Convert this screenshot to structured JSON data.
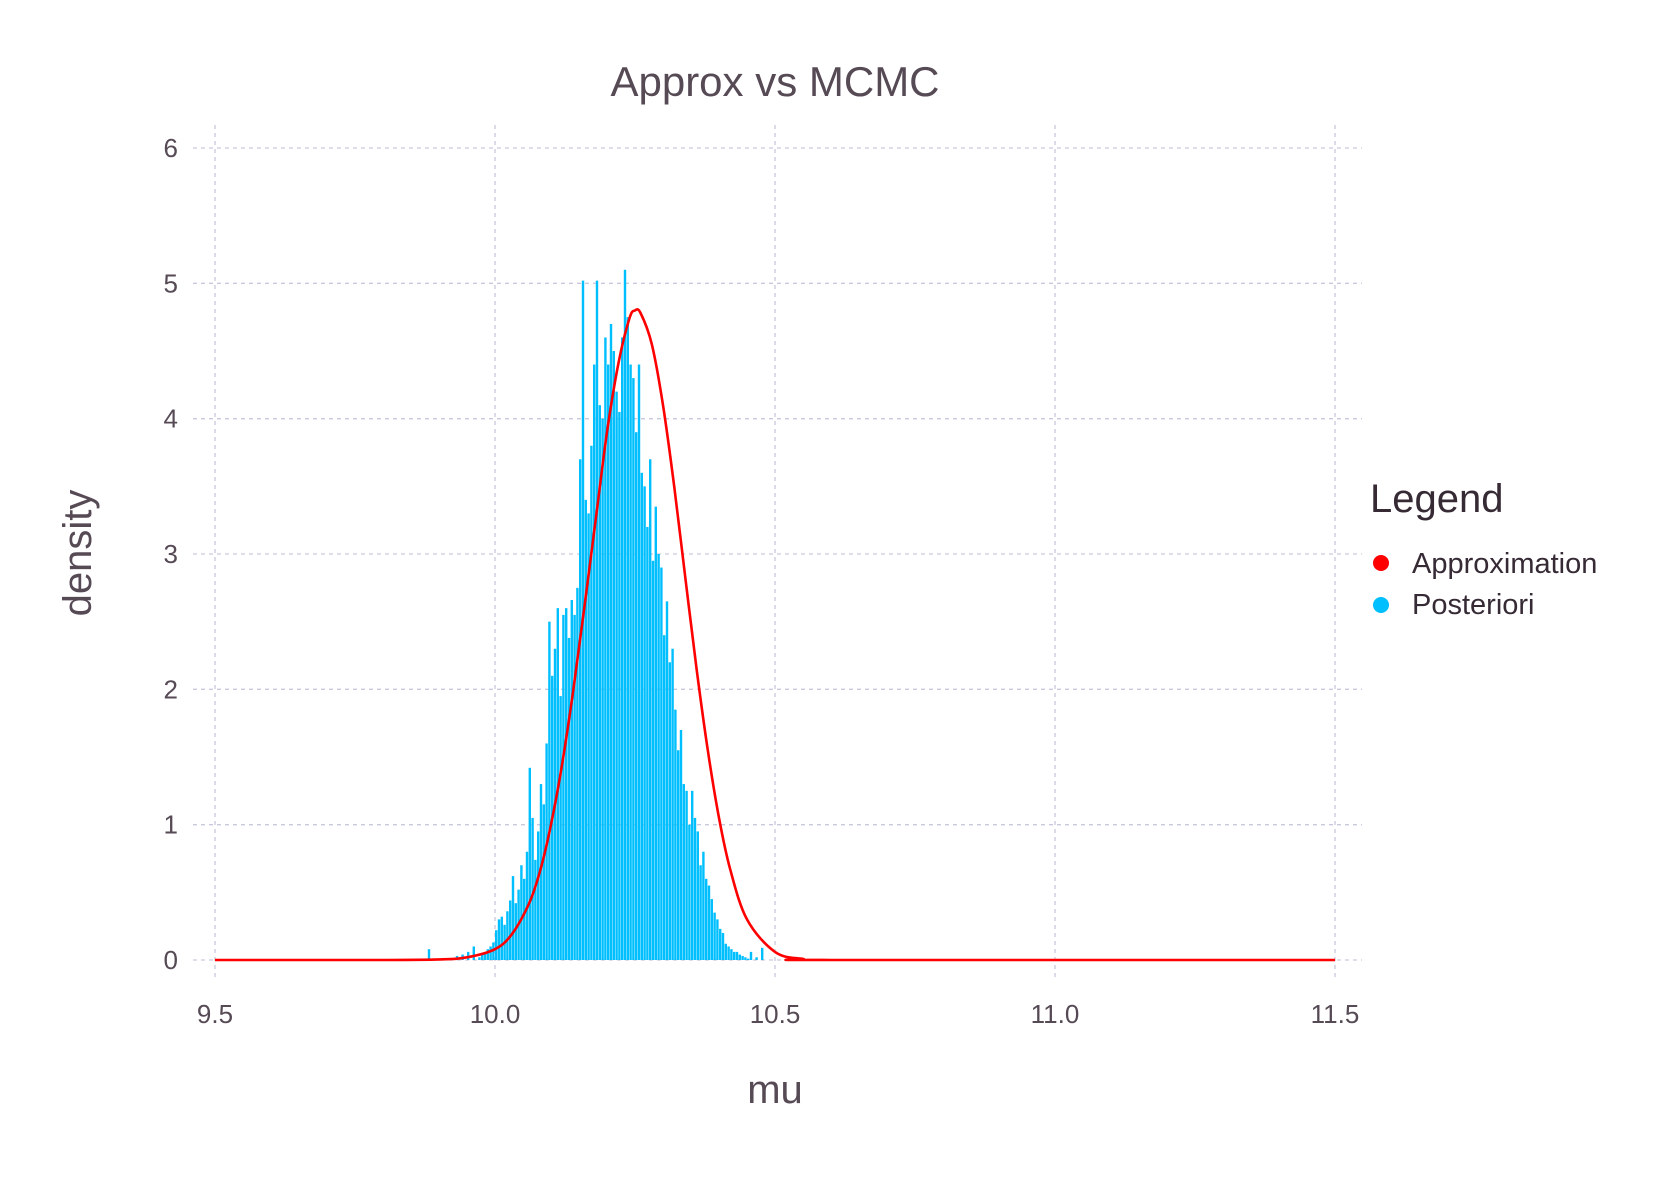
{
  "chart_data": {
    "type": "bar",
    "title": "Approx vs MCMC",
    "xlabel": "mu",
    "ylabel": "density",
    "xlim": [
      9.5,
      11.5
    ],
    "ylim": [
      0,
      6
    ],
    "x_ticks": [
      "9.5",
      "10.0",
      "10.5",
      "11.0",
      "11.5"
    ],
    "y_ticks": [
      "0",
      "1",
      "2",
      "3",
      "4",
      "5",
      "6"
    ],
    "grid": true,
    "legend": {
      "title": "Legend",
      "position": "right",
      "entries": [
        {
          "label": "Approximation",
          "color": "#ff0000"
        },
        {
          "label": "Posteriori",
          "color": "#00bfff"
        }
      ]
    },
    "series": [
      {
        "name": "Posteriori",
        "kind": "histogram",
        "color": "#00bfff",
        "bin_width": 0.005,
        "bin_start": 9.88,
        "values": [
          0.08,
          0,
          0,
          0,
          0,
          0,
          0,
          0,
          0,
          0,
          0.03,
          0,
          0.04,
          0,
          0.06,
          0,
          0.1,
          0,
          0.02,
          0.05,
          0.05,
          0.08,
          0.1,
          0.13,
          0.22,
          0.3,
          0.32,
          0.26,
          0.36,
          0.44,
          0.62,
          0.42,
          0.52,
          0.7,
          0.6,
          0.8,
          1.42,
          1.05,
          0.74,
          0.95,
          1.3,
          1.15,
          1.6,
          2.5,
          2.1,
          2.3,
          2.6,
          1.95,
          2.55,
          2.6,
          2.38,
          2.66,
          2.55,
          2.75,
          3.7,
          5.02,
          3.4,
          3.3,
          3.8,
          4.4,
          5.02,
          4.1,
          4.0,
          4.6,
          4.4,
          4.7,
          4.5,
          4.2,
          4.05,
          4.6,
          5.1,
          4.75,
          4.4,
          4.3,
          3.9,
          4.4,
          3.6,
          3.5,
          3.2,
          3.7,
          2.95,
          3.35,
          3.0,
          2.9,
          2.4,
          2.65,
          2.2,
          2.3,
          1.85,
          1.55,
          1.7,
          1.3,
          1.25,
          1.0,
          1.25,
          1.05,
          0.95,
          0.7,
          0.8,
          0.6,
          0.55,
          0.45,
          0.35,
          0.3,
          0.23,
          0.2,
          0.12,
          0.1,
          0.08,
          0.06,
          0.06,
          0.04,
          0.03,
          0.02,
          0.01,
          0.06,
          0,
          0.02,
          0,
          0.09
        ]
      },
      {
        "name": "Approximation",
        "kind": "line",
        "color": "#ff0000",
        "x": [
          9.5,
          9.8,
          9.9,
          9.95,
          10.0,
          10.03,
          10.06,
          10.08,
          10.1,
          10.12,
          10.14,
          10.16,
          10.18,
          10.2,
          10.22,
          10.24,
          10.25,
          10.26,
          10.28,
          10.3,
          10.32,
          10.34,
          10.36,
          10.38,
          10.4,
          10.42,
          10.45,
          10.5,
          10.55,
          10.6,
          11.5
        ],
        "y": [
          0,
          0,
          0.004,
          0.02,
          0.08,
          0.19,
          0.41,
          0.65,
          1.0,
          1.45,
          2.0,
          2.62,
          3.26,
          3.9,
          4.4,
          4.74,
          4.8,
          4.78,
          4.55,
          4.1,
          3.5,
          2.82,
          2.15,
          1.55,
          1.05,
          0.67,
          0.3,
          0.06,
          0.008,
          0,
          0
        ]
      }
    ]
  }
}
